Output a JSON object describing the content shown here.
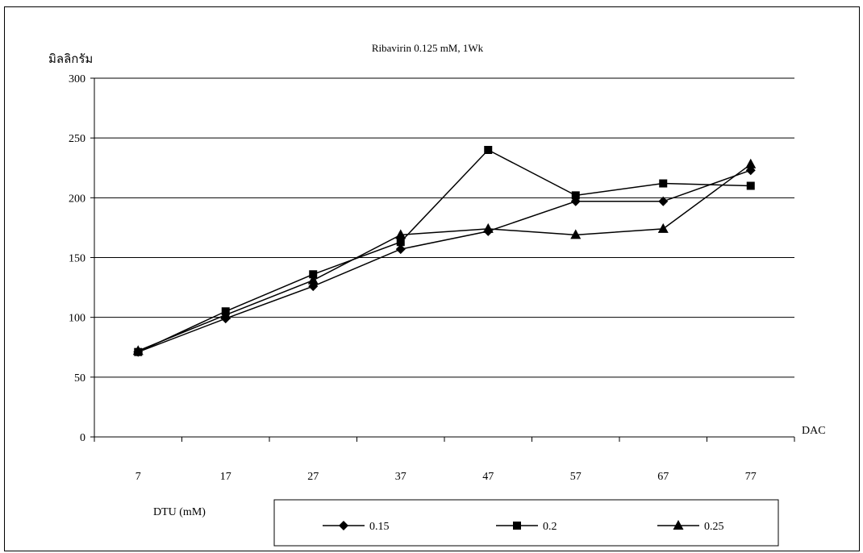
{
  "chart_data": {
    "type": "line",
    "title": "Ribavirin 0.125 mM, 1Wk",
    "ylabel": "มิลลิกรัม",
    "xlabel": "DAC",
    "legend_title": "DTU (mM)",
    "legend_position": "bottom",
    "categories": [
      "7",
      "17",
      "27",
      "37",
      "47",
      "57",
      "67",
      "77"
    ],
    "ylim": [
      0,
      300
    ],
    "yticks": [
      0,
      50,
      100,
      150,
      200,
      250,
      300
    ],
    "grid": true,
    "series": [
      {
        "name": "0.15",
        "marker": "diamond",
        "values": [
          71,
          99,
          126,
          157,
          172,
          197,
          197,
          223
        ]
      },
      {
        "name": "0.2",
        "marker": "square",
        "values": [
          71,
          105,
          136,
          163,
          240,
          202,
          212,
          210
        ]
      },
      {
        "name": "0.25",
        "marker": "triangle",
        "values": [
          72,
          102,
          131,
          169,
          174,
          169,
          174,
          228
        ]
      }
    ]
  }
}
